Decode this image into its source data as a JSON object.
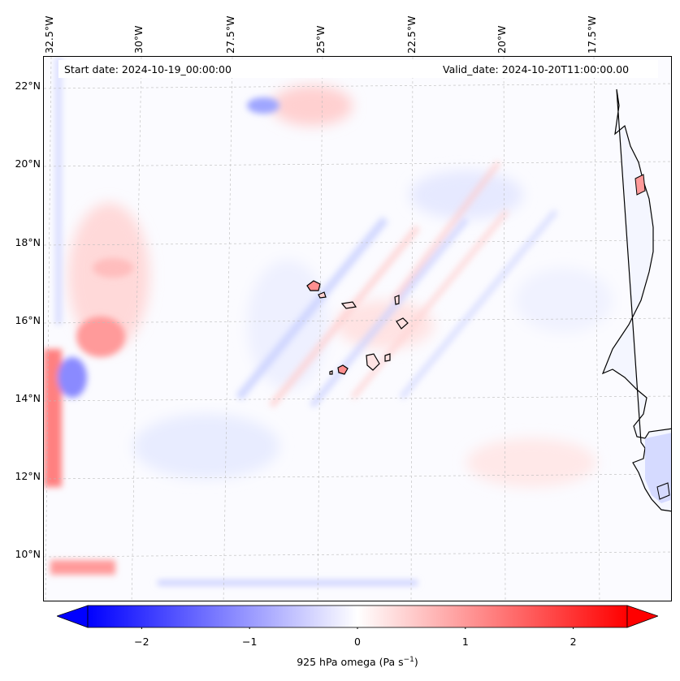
{
  "map": {
    "start_date_text": "Start date: 2024-10-19_00:00:00",
    "valid_date_text": "Valid_date: 2024-10-20T11:00:00.00",
    "lon_labels": [
      "32.5°W",
      "30°W",
      "27.5°W",
      "25°W",
      "22.5°W",
      "20°W",
      "17.5°W"
    ],
    "lat_labels": [
      "22°N",
      "20°N",
      "18°N",
      "16°N",
      "14°N",
      "12°N",
      "10°N"
    ],
    "lon_values": [
      -32.5,
      -30,
      -27.5,
      -25,
      -22.5,
      -20,
      -17.5
    ],
    "lat_values": [
      22,
      20,
      18,
      16,
      14,
      12,
      10
    ],
    "extent": {
      "lon_min": -32.5,
      "lon_max": -15.0,
      "lat_min": 8.9,
      "lat_max": 22.8
    },
    "colors": {
      "negative": "#0000ff",
      "zero": "#ffffff",
      "positive": "#ff0000",
      "coastline": "#000000",
      "gridline": "#bbbbbb"
    }
  },
  "colorbar": {
    "label": "925 hPa omega (Pa s",
    "label_exponent": "−1",
    "label_close": ")",
    "ticks": [
      {
        "value": -2,
        "label": "−2"
      },
      {
        "value": -1,
        "label": "−1"
      },
      {
        "value": 0,
        "label": "0"
      },
      {
        "value": 1,
        "label": "1"
      },
      {
        "value": 2,
        "label": "2"
      }
    ],
    "vmin": -2.5,
    "vmax": 2.5,
    "extend": "both"
  }
}
